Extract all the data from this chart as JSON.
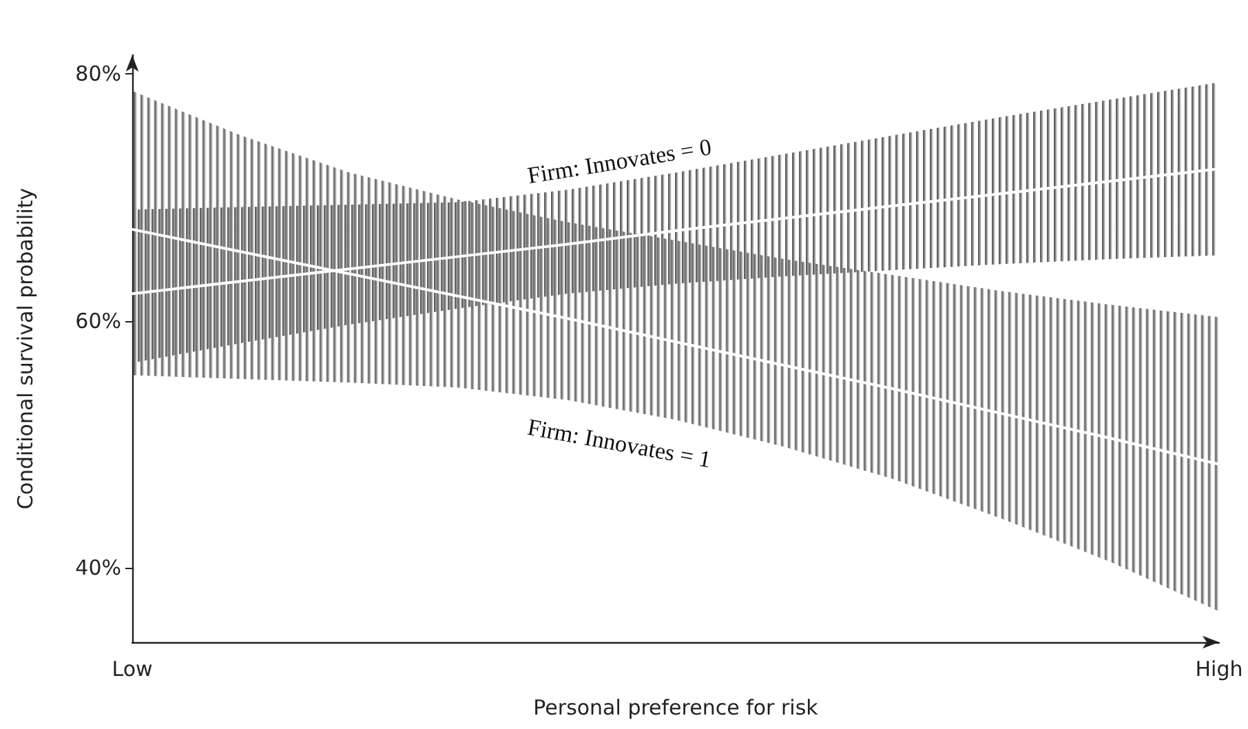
{
  "chart_data": {
    "type": "line",
    "xlabel": "Personal preference for risk",
    "ylabel": "Conditional survival probability",
    "categories": [
      "Low",
      null,
      null,
      null,
      null,
      null,
      null,
      null,
      null,
      null,
      "High"
    ],
    "series": [
      {
        "name": "Firm: Innovates = 0",
        "color": "#ffffff",
        "values": [
          62.2,
          63.2,
          64.2,
          65.2,
          66.2,
          67.3,
          68.3,
          69.3,
          70.3,
          71.3,
          72.3
        ],
        "lower": [
          56.6,
          58.2,
          59.7,
          61.0,
          62.2,
          63.0,
          63.6,
          64.1,
          64.6,
          65.0,
          65.3
        ],
        "upper": [
          69.0,
          69.2,
          69.4,
          69.6,
          70.6,
          72.0,
          73.5,
          75.0,
          76.5,
          77.9,
          79.3
        ]
      },
      {
        "name": "Firm: Innovates = 1",
        "color": "#ffffff",
        "values": [
          67.4,
          65.6,
          63.8,
          62.0,
          60.2,
          58.3,
          56.4,
          54.5,
          52.5,
          50.5,
          48.4
        ],
        "lower": [
          55.6,
          55.3,
          55.0,
          54.6,
          53.6,
          52.0,
          49.8,
          47.2,
          44.0,
          40.5,
          36.5
        ],
        "upper": [
          78.6,
          75.0,
          72.0,
          69.8,
          68.0,
          66.5,
          65.0,
          63.7,
          62.4,
          61.3,
          60.3
        ]
      }
    ],
    "ylim": [
      34,
      81.5
    ],
    "yticks": [
      {
        "value": 40,
        "label": "40%"
      },
      {
        "value": 60,
        "label": "60%"
      },
      {
        "value": 80,
        "label": "80%"
      }
    ],
    "grid": false,
    "legend": false,
    "marker": "none",
    "line_style": "solid"
  }
}
